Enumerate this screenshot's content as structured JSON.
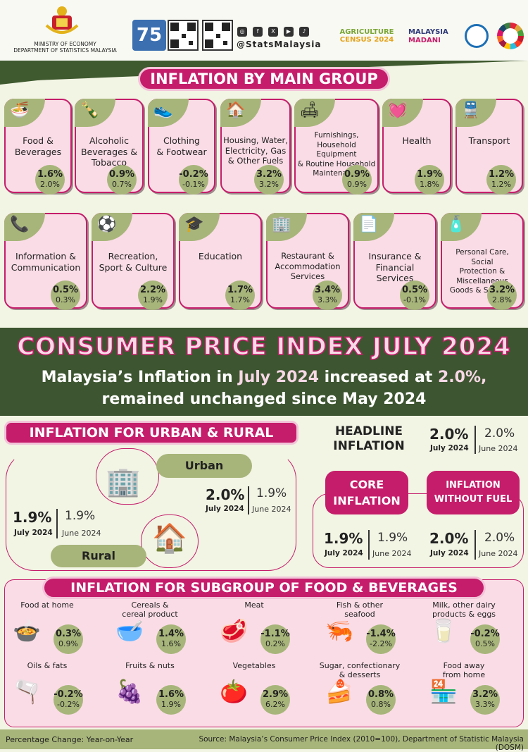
{
  "header": {
    "ministry_line1": "MINISTRY OF ECONOMY",
    "ministry_line2": "DEPARTMENT OF STATISTICS MALAYSIA",
    "handle": "@StatsMalaysia",
    "agri_line1": "AGRICULTURE",
    "agri_line2": "CENSUS 2024",
    "madani_line1": "MALAYSIA",
    "madani_line2": "MADANI"
  },
  "main_group": {
    "title": "INFLATION BY MAIN GROUP",
    "row1": [
      {
        "label": "Food &\nBeverages",
        "current": "1.6%",
        "previous": "2.0%",
        "icon": "food-icon"
      },
      {
        "label": "Alcoholic\nBeverages &\nTobacco",
        "current": "0.9%",
        "previous": "0.7%",
        "icon": "bottle-icon"
      },
      {
        "label": "Clothing\n& Footwear",
        "current": "-0.2%",
        "previous": "-0.1%",
        "icon": "shoe-icon"
      },
      {
        "label": "Housing, Water,\nElectricity, Gas\n& Other Fuels",
        "current": "3.2%",
        "previous": "3.2%",
        "icon": "house-icon"
      },
      {
        "label": "Furnishings,\nHousehold Equipment\n& Routine Household\nMaintenance",
        "current": "0.9%",
        "previous": "0.9%",
        "icon": "furniture-icon"
      },
      {
        "label": "Health",
        "current": "1.9%",
        "previous": "1.8%",
        "icon": "heart-icon"
      },
      {
        "label": "Transport",
        "current": "1.2%",
        "previous": "1.2%",
        "icon": "train-icon"
      }
    ],
    "row2": [
      {
        "label": "Information &\nCommunication",
        "current": "0.5%",
        "previous": "0.3%",
        "icon": "phone-icon"
      },
      {
        "label": "Recreation,\nSport & Culture",
        "current": "2.2%",
        "previous": "1.9%",
        "icon": "ball-icon"
      },
      {
        "label": "Education",
        "current": "1.7%",
        "previous": "1.7%",
        "icon": "graduation-cap-icon"
      },
      {
        "label": "Restaurant &\nAccommodation\nServices",
        "current": "3.4%",
        "previous": "3.3%",
        "icon": "building-icon"
      },
      {
        "label": "Insurance &\nFinancial\nServices",
        "current": "0.5%",
        "previous": "-0.1%",
        "icon": "document-icon"
      },
      {
        "label": "Personal Care, Social\nProtection &\nMiscellaneous\nGoods & Services",
        "current": "3.2%",
        "previous": "2.8%",
        "icon": "bottles-icon"
      }
    ]
  },
  "cpi": {
    "title": "CONSUMER PRICE INDEX JULY 2024",
    "sub1_a": "Malaysia’s Inflation in ",
    "sub1_b": "July 2024",
    "sub1_c": " increased at ",
    "sub1_d": "2.0%,",
    "sub2": "remained unchanged since May 2024"
  },
  "urban_rural": {
    "title": "INFLATION FOR URBAN & RURAL",
    "urban_label": "Urban",
    "urban_current": "2.0%",
    "urban_previous": "1.9%",
    "rural_label": "Rural",
    "rural_current": "1.9%",
    "rural_previous": "1.9%",
    "current_label": "July 2024",
    "previous_label": "June 2024"
  },
  "headline": {
    "title_line1": "HEADLINE",
    "title_line2": "INFLATION",
    "current": "2.0%",
    "previous": "2.0%"
  },
  "core": {
    "title_line1": "CORE",
    "title_line2": "INFLATION",
    "current": "1.9%",
    "previous": "1.9%"
  },
  "nofuel": {
    "title_line1": "INFLATION",
    "title_line2": "WITHOUT FUEL",
    "current": "2.0%",
    "previous": "2.0%"
  },
  "subgroup": {
    "title": "INFLATION FOR SUBGROUP OF FOOD & BEVERAGES",
    "items": [
      {
        "label": "Food at home",
        "current": "0.3%",
        "previous": "0.9%",
        "icon": "pot-icon"
      },
      {
        "label": "Cereals &\ncereal product",
        "current": "1.4%",
        "previous": "1.6%",
        "icon": "cereal-icon"
      },
      {
        "label": "Meat",
        "current": "-1.1%",
        "previous": "0.2%",
        "icon": "meat-icon"
      },
      {
        "label": "Fish & other\nseafood",
        "current": "-1.4%",
        "previous": "-2.2%",
        "icon": "shrimp-icon"
      },
      {
        "label": "Milk, other dairy\nproducts & eggs",
        "current": "-0.2%",
        "previous": "0.5%",
        "icon": "milk-icon"
      },
      {
        "label": "Oils & fats",
        "current": "-0.2%",
        "previous": "-0.2%",
        "icon": "oil-icon"
      },
      {
        "label": "Fruits & nuts",
        "current": "1.6%",
        "previous": "1.9%",
        "icon": "fruit-icon"
      },
      {
        "label": "Vegetables",
        "current": "2.9%",
        "previous": "6.2%",
        "icon": "vegetable-icon"
      },
      {
        "label": "Sugar, confectionary\n& desserts",
        "current": "0.8%",
        "previous": "0.8%",
        "icon": "cake-icon"
      },
      {
        "label": "Food away\nfrom home",
        "current": "3.2%",
        "previous": "3.3%",
        "icon": "shop-icon"
      }
    ]
  },
  "footer": {
    "left": "Percentage Change: Year-on-Year",
    "right": "Source: Malaysia’s Consumer Price Index (2010=100), Department of Statistic Malaysia (DOSM)"
  }
}
